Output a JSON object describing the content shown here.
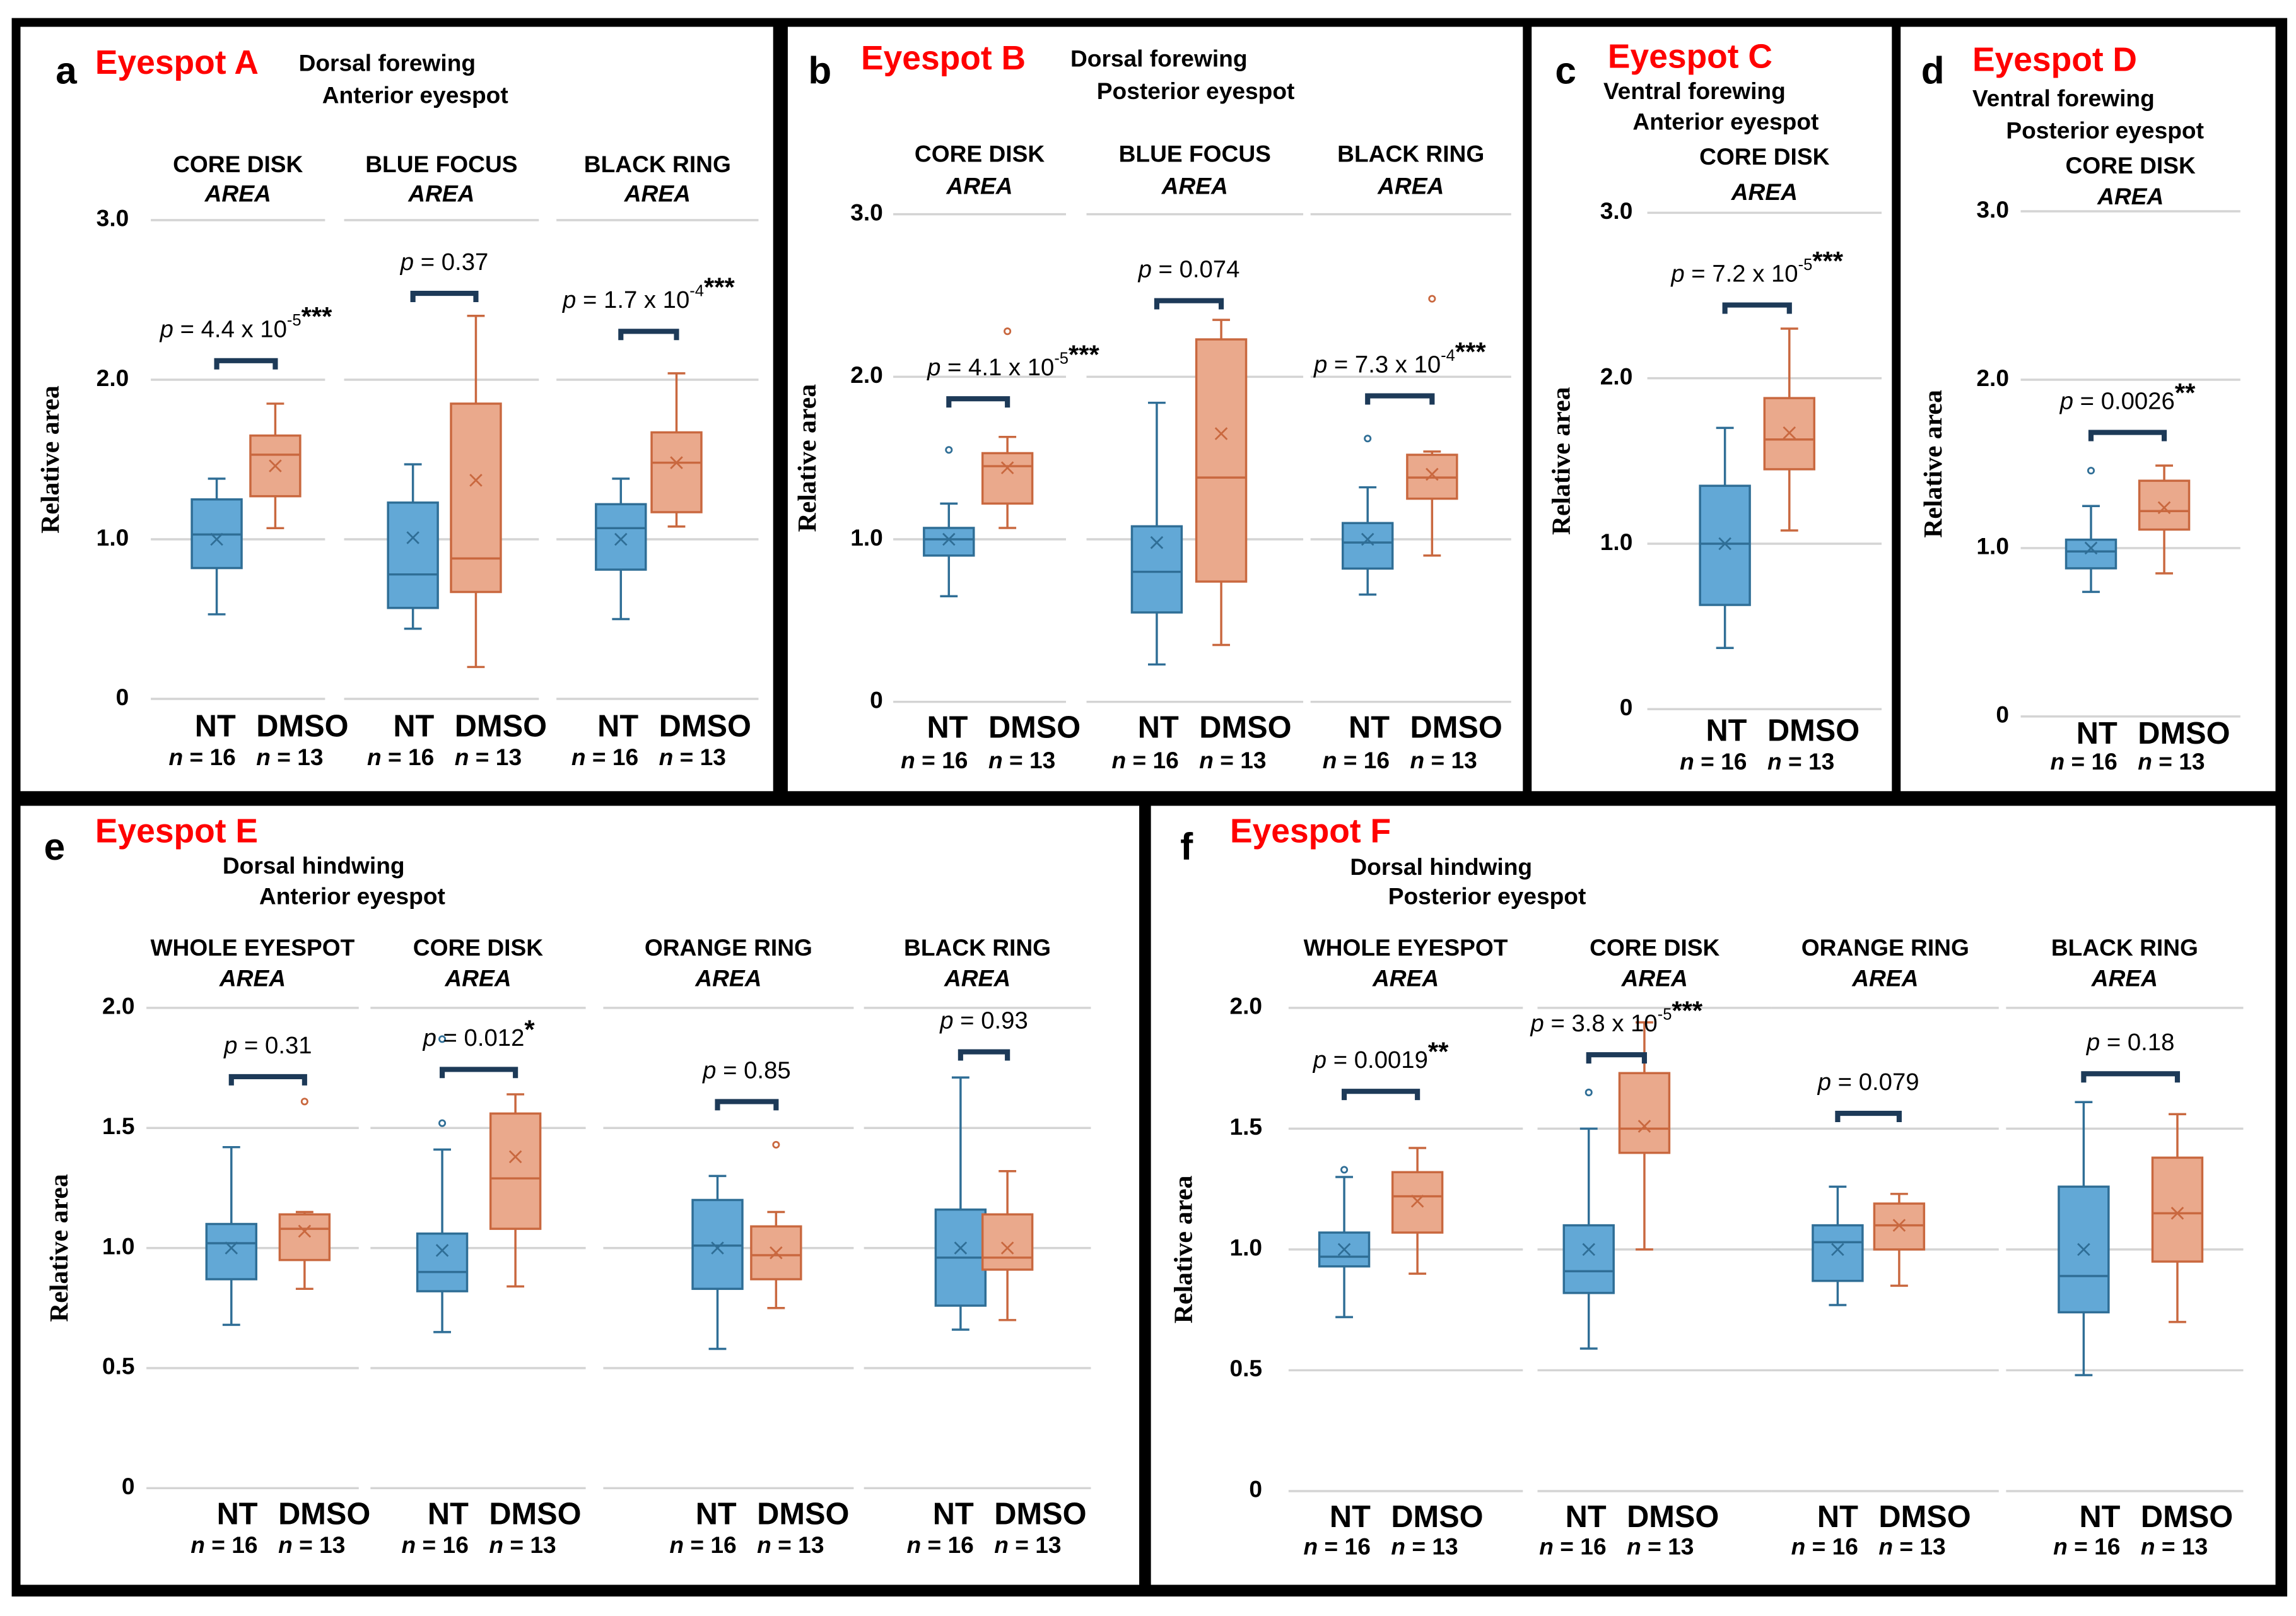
{
  "colors": {
    "nt_fill": "#62a8d6",
    "nt_stroke": "#2f6e96",
    "dmso_fill": "#eaa98c",
    "dmso_stroke": "#c9683f",
    "bracket": "#1d3a58",
    "title": "#ff0000",
    "grid": "#d4d4d4"
  },
  "ylabel": "Relative area",
  "chart_data": [
    {
      "type": "box",
      "panel": "a",
      "title": "Eyespot A",
      "subtitle": [
        "Dorsal forewing",
        "Anterior eyespot"
      ],
      "ylim": [
        0,
        3
      ],
      "yticks": [
        {
          "v": 0,
          "label": "0"
        },
        {
          "v": 1,
          "label": "1.0"
        },
        {
          "v": 2,
          "label": "2.0"
        },
        {
          "v": 3,
          "label": "3.0"
        }
      ],
      "subplots": [
        {
          "title": "CORE DISK",
          "subtitle": "AREA",
          "p": {
            "text": "4.4 x 10",
            "exp": "-5",
            "stars": "***"
          },
          "boxes": [
            {
              "group": "NT",
              "n": "16",
              "min": 0.53,
              "q1": 0.82,
              "median": 1.03,
              "q3": 1.25,
              "max": 1.38,
              "mean": 1.0,
              "outliers": []
            },
            {
              "group": "DMSO",
              "n": "13",
              "min": 1.07,
              "q1": 1.27,
              "median": 1.53,
              "q3": 1.65,
              "max": 1.85,
              "mean": 1.46,
              "outliers": []
            }
          ]
        },
        {
          "title": "BLUE FOCUS",
          "subtitle": "AREA",
          "p": {
            "text": "0.37",
            "exp": "",
            "stars": ""
          },
          "boxes": [
            {
              "group": "NT",
              "n": "16",
              "min": 0.44,
              "q1": 0.57,
              "median": 0.78,
              "q3": 1.23,
              "max": 1.47,
              "mean": 1.01,
              "outliers": []
            },
            {
              "group": "DMSO",
              "n": "13",
              "min": 0.2,
              "q1": 0.67,
              "median": 0.88,
              "q3": 1.85,
              "max": 2.4,
              "mean": 1.37,
              "outliers": []
            }
          ]
        },
        {
          "title": "BLACK RING",
          "subtitle": "AREA",
          "p": {
            "text": "1.7 x 10",
            "exp": "-4",
            "stars": "***"
          },
          "boxes": [
            {
              "group": "NT",
              "n": "16",
              "min": 0.5,
              "q1": 0.81,
              "median": 1.07,
              "q3": 1.22,
              "max": 1.38,
              "mean": 1.0,
              "outliers": []
            },
            {
              "group": "DMSO",
              "n": "13",
              "min": 1.08,
              "q1": 1.17,
              "median": 1.48,
              "q3": 1.67,
              "max": 2.04,
              "mean": 1.48,
              "outliers": []
            }
          ]
        }
      ]
    },
    {
      "type": "box",
      "panel": "b",
      "title": "Eyespot B",
      "subtitle": [
        "Dorsal forewing",
        "Posterior eyespot"
      ],
      "ylim": [
        0,
        3
      ],
      "yticks": [
        {
          "v": 0,
          "label": "0"
        },
        {
          "v": 1,
          "label": "1.0"
        },
        {
          "v": 2,
          "label": "2.0"
        },
        {
          "v": 3,
          "label": "3.0"
        }
      ],
      "subplots": [
        {
          "title": "CORE DISK",
          "subtitle": "AREA",
          "p": {
            "text": "4.1 x 10",
            "exp": "-5",
            "stars": "***"
          },
          "boxes": [
            {
              "group": "NT",
              "n": "16",
              "min": 0.65,
              "q1": 0.9,
              "median": 1.0,
              "q3": 1.07,
              "max": 1.22,
              "mean": 1.0,
              "outliers": [
                1.55
              ]
            },
            {
              "group": "DMSO",
              "n": "13",
              "min": 1.07,
              "q1": 1.22,
              "median": 1.45,
              "q3": 1.53,
              "max": 1.63,
              "mean": 1.44,
              "outliers": [
                2.28
              ]
            }
          ]
        },
        {
          "title": "BLUE FOCUS",
          "subtitle": "AREA",
          "p": {
            "text": "0.074",
            "exp": "",
            "stars": ""
          },
          "boxes": [
            {
              "group": "NT",
              "n": "16",
              "min": 0.23,
              "q1": 0.55,
              "median": 0.8,
              "q3": 1.08,
              "max": 1.84,
              "mean": 0.98,
              "outliers": []
            },
            {
              "group": "DMSO",
              "n": "13",
              "min": 0.35,
              "q1": 0.74,
              "median": 1.38,
              "q3": 2.23,
              "max": 2.35,
              "mean": 1.65,
              "outliers": []
            }
          ]
        },
        {
          "title": "BLACK RING",
          "subtitle": "AREA",
          "p": {
            "text": "7.3 x 10",
            "exp": "-4",
            "stars": "***"
          },
          "boxes": [
            {
              "group": "NT",
              "n": "16",
              "min": 0.66,
              "q1": 0.82,
              "median": 0.98,
              "q3": 1.1,
              "max": 1.32,
              "mean": 1.0,
              "outliers": [
                1.62
              ]
            },
            {
              "group": "DMSO",
              "n": "13",
              "min": 0.9,
              "q1": 1.25,
              "median": 1.38,
              "q3": 1.52,
              "max": 1.54,
              "mean": 1.4,
              "outliers": [
                2.48
              ]
            }
          ]
        }
      ]
    },
    {
      "type": "box",
      "panel": "c",
      "title": "Eyespot C",
      "subtitle": [
        "Ventral forewing",
        "Anterior eyespot"
      ],
      "ylim": [
        0,
        3
      ],
      "yticks": [
        {
          "v": 0,
          "label": "0"
        },
        {
          "v": 1,
          "label": "1.0"
        },
        {
          "v": 2,
          "label": "2.0"
        },
        {
          "v": 3,
          "label": "3.0"
        }
      ],
      "subplots": [
        {
          "title": "CORE DISK",
          "subtitle": "AREA",
          "p": {
            "text": "7.2 x 10",
            "exp": "-5",
            "stars": "***"
          },
          "boxes": [
            {
              "group": "NT",
              "n": "16",
              "min": 0.37,
              "q1": 0.63,
              "median": 1.0,
              "q3": 1.35,
              "max": 1.7,
              "mean": 1.0,
              "outliers": []
            },
            {
              "group": "DMSO",
              "n": "13",
              "min": 1.08,
              "q1": 1.45,
              "median": 1.63,
              "q3": 1.88,
              "max": 2.3,
              "mean": 1.67,
              "outliers": []
            }
          ]
        }
      ]
    },
    {
      "type": "box",
      "panel": "d",
      "title": "Eyespot D",
      "subtitle": [
        "Ventral forewing",
        "Posterior eyespot"
      ],
      "ylim": [
        0,
        3
      ],
      "yticks": [
        {
          "v": 0,
          "label": "0"
        },
        {
          "v": 1,
          "label": "1.0"
        },
        {
          "v": 2,
          "label": "2.0"
        },
        {
          "v": 3,
          "label": "3.0"
        }
      ],
      "subplots": [
        {
          "title": "CORE DISK",
          "subtitle": "AREA",
          "p": {
            "text": "0.0026",
            "exp": "",
            "stars": "**"
          },
          "boxes": [
            {
              "group": "NT",
              "n": "16",
              "min": 0.74,
              "q1": 0.88,
              "median": 0.98,
              "q3": 1.05,
              "max": 1.25,
              "mean": 1.0,
              "outliers": [
                1.46
              ]
            },
            {
              "group": "DMSO",
              "n": "13",
              "min": 0.85,
              "q1": 1.11,
              "median": 1.22,
              "q3": 1.4,
              "max": 1.49,
              "mean": 1.24,
              "outliers": []
            }
          ]
        }
      ]
    },
    {
      "type": "box",
      "panel": "e",
      "title": "Eyespot E",
      "subtitle": [
        "Dorsal hindwing",
        "Anterior eyespot"
      ],
      "ylim": [
        0,
        2
      ],
      "yticks": [
        {
          "v": 0,
          "label": "0"
        },
        {
          "v": 0.5,
          "label": "0.5"
        },
        {
          "v": 1,
          "label": "1.0"
        },
        {
          "v": 1.5,
          "label": "1.5"
        },
        {
          "v": 2,
          "label": "2.0"
        }
      ],
      "subplots": [
        {
          "title": "WHOLE EYESPOT",
          "subtitle": "AREA",
          "p": {
            "text": "0.31",
            "exp": "",
            "stars": ""
          },
          "boxes": [
            {
              "group": "NT",
              "n": "16",
              "min": 0.68,
              "q1": 0.87,
              "median": 1.02,
              "q3": 1.1,
              "max": 1.42,
              "mean": 1.0,
              "outliers": []
            },
            {
              "group": "DMSO",
              "n": "13",
              "min": 0.83,
              "q1": 0.95,
              "median": 1.08,
              "q3": 1.14,
              "max": 1.15,
              "mean": 1.07,
              "outliers": [
                1.61
              ]
            }
          ]
        },
        {
          "title": "CORE DISK",
          "subtitle": "AREA",
          "p": {
            "text": "0.012",
            "exp": "",
            "stars": "*"
          },
          "boxes": [
            {
              "group": "NT",
              "n": "16",
              "min": 0.65,
              "q1": 0.82,
              "median": 0.9,
              "q3": 1.06,
              "max": 1.41,
              "mean": 0.99,
              "outliers": [
                1.52,
                1.87
              ]
            },
            {
              "group": "DMSO",
              "n": "13",
              "min": 0.84,
              "q1": 1.08,
              "median": 1.29,
              "q3": 1.56,
              "max": 1.64,
              "mean": 1.38,
              "outliers": []
            }
          ]
        },
        {
          "title": "ORANGE RING",
          "subtitle": "AREA",
          "p": {
            "text": "0.85",
            "exp": "",
            "stars": ""
          },
          "boxes": [
            {
              "group": "NT",
              "n": "16",
              "min": 0.58,
              "q1": 0.83,
              "median": 1.01,
              "q3": 1.2,
              "max": 1.3,
              "mean": 1.0,
              "outliers": []
            },
            {
              "group": "DMSO",
              "n": "13",
              "min": 0.75,
              "q1": 0.87,
              "median": 0.97,
              "q3": 1.09,
              "max": 1.15,
              "mean": 0.98,
              "outliers": [
                1.43
              ]
            }
          ]
        },
        {
          "title": "BLACK RING",
          "subtitle": "AREA",
          "p": {
            "text": "0.93",
            "exp": "",
            "stars": ""
          },
          "boxes": [
            {
              "group": "NT",
              "n": "16",
              "min": 0.66,
              "q1": 0.76,
              "median": 0.96,
              "q3": 1.16,
              "max": 1.71,
              "mean": 1.0,
              "outliers": []
            },
            {
              "group": "DMSO",
              "n": "13",
              "min": 0.7,
              "q1": 0.91,
              "median": 0.96,
              "q3": 1.14,
              "max": 1.32,
              "mean": 1.0,
              "outliers": []
            }
          ]
        }
      ]
    },
    {
      "type": "box",
      "panel": "f",
      "title": "Eyespot F",
      "subtitle": [
        "Dorsal hindwing",
        "Posterior eyespot"
      ],
      "ylim": [
        0,
        2
      ],
      "yticks": [
        {
          "v": 0,
          "label": "0"
        },
        {
          "v": 0.5,
          "label": "0.5"
        },
        {
          "v": 1,
          "label": "1.0"
        },
        {
          "v": 1.5,
          "label": "1.5"
        },
        {
          "v": 2,
          "label": "2.0"
        }
      ],
      "subplots": [
        {
          "title": "WHOLE EYESPOT",
          "subtitle": "AREA",
          "p": {
            "text": "0.0019",
            "exp": "",
            "stars": "**"
          },
          "boxes": [
            {
              "group": "NT",
              "n": "16",
              "min": 0.72,
              "q1": 0.93,
              "median": 0.97,
              "q3": 1.07,
              "max": 1.3,
              "mean": 1.0,
              "outliers": [
                1.33
              ]
            },
            {
              "group": "DMSO",
              "n": "13",
              "min": 0.9,
              "q1": 1.07,
              "median": 1.22,
              "q3": 1.32,
              "max": 1.42,
              "mean": 1.2,
              "outliers": []
            }
          ]
        },
        {
          "title": "CORE DISK",
          "subtitle": "AREA",
          "p": {
            "text": "3.8 x 10",
            "exp": "-5",
            "stars": "***"
          },
          "boxes": [
            {
              "group": "NT",
              "n": "16",
              "min": 0.59,
              "q1": 0.82,
              "median": 0.91,
              "q3": 1.1,
              "max": 1.5,
              "mean": 1.0,
              "outliers": [
                1.65
              ]
            },
            {
              "group": "DMSO",
              "n": "13",
              "min": 1.0,
              "q1": 1.4,
              "median": 1.5,
              "q3": 1.73,
              "max": 1.94,
              "mean": 1.51,
              "outliers": []
            }
          ]
        },
        {
          "title": "ORANGE RING",
          "subtitle": "AREA",
          "p": {
            "text": "0.079",
            "exp": "",
            "stars": ""
          },
          "boxes": [
            {
              "group": "NT",
              "n": "16",
              "min": 0.77,
              "q1": 0.87,
              "median": 1.03,
              "q3": 1.1,
              "max": 1.26,
              "mean": 1.0,
              "outliers": []
            },
            {
              "group": "DMSO",
              "n": "13",
              "min": 0.85,
              "q1": 1.0,
              "median": 1.1,
              "q3": 1.19,
              "max": 1.23,
              "mean": 1.1,
              "outliers": []
            }
          ]
        },
        {
          "title": "BLACK RING",
          "subtitle": "AREA",
          "p": {
            "text": "0.18",
            "exp": "",
            "stars": ""
          },
          "boxes": [
            {
              "group": "NT",
              "n": "16",
              "min": 0.48,
              "q1": 0.74,
              "median": 0.89,
              "q3": 1.26,
              "max": 1.61,
              "mean": 1.0,
              "outliers": []
            },
            {
              "group": "DMSO",
              "n": "13",
              "min": 0.7,
              "q1": 0.95,
              "median": 1.15,
              "q3": 1.38,
              "max": 1.56,
              "mean": 1.15,
              "outliers": []
            }
          ]
        }
      ]
    }
  ]
}
